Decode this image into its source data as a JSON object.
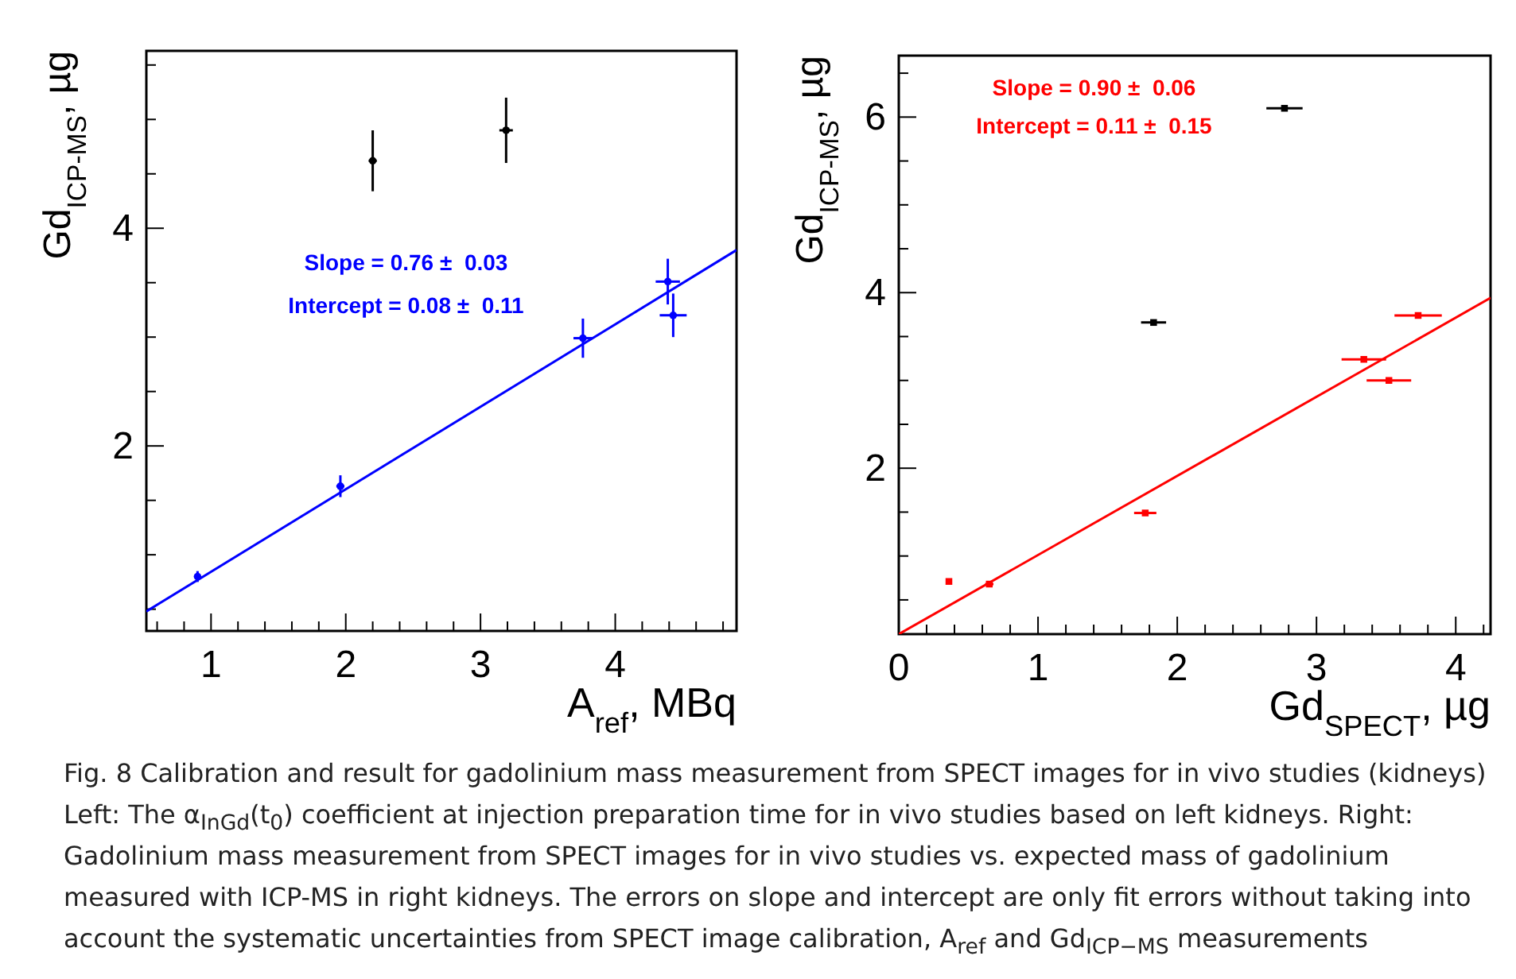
{
  "chart_data": [
    {
      "type": "scatter",
      "xlabel": "A$_{ref}$, MBq",
      "ylabel": "Gd$_{ICP-MS}$, µg",
      "xlim": [
        0.52,
        4.9
      ],
      "ylim": [
        0.3,
        5.63
      ],
      "xticks": [
        {
          "value": 0.6,
          "label": null
        },
        {
          "value": 0.8,
          "label": null
        },
        1,
        {
          "value": 1.2,
          "label": null
        },
        {
          "value": 1.4,
          "label": null
        },
        {
          "value": 1.6,
          "label": null
        },
        {
          "value": 1.8,
          "label": null
        },
        2,
        {
          "value": 2.2,
          "label": null
        },
        {
          "value": 2.4,
          "label": null
        },
        {
          "value": 2.6,
          "label": null
        },
        {
          "value": 2.8,
          "label": null
        },
        3,
        {
          "value": 3.2,
          "label": null
        },
        {
          "value": 3.4,
          "label": null
        },
        {
          "value": 3.6,
          "label": null
        },
        {
          "value": 3.8,
          "label": null
        },
        4,
        {
          "value": 4.2,
          "label": null
        },
        {
          "value": 4.4,
          "label": null
        },
        {
          "value": 4.6,
          "label": null
        },
        {
          "value": 4.8,
          "label": null
        }
      ],
      "yticks": [
        {
          "value": 0.5,
          "label": null
        },
        {
          "value": 1,
          "label": null
        },
        {
          "value": 1.5,
          "label": null
        },
        2,
        {
          "value": 2.5,
          "label": null
        },
        {
          "value": 3,
          "label": null
        },
        {
          "value": 3.5,
          "label": null
        },
        4,
        {
          "value": 4.5,
          "label": null
        },
        {
          "value": 5,
          "label": null
        },
        {
          "value": 5.5,
          "label": null
        }
      ],
      "series": [
        {
          "marker": "circle",
          "color": "#0000ff",
          "x": [
            0.9,
            1.96,
            3.76,
            4.39,
            4.43
          ],
          "values": [
            0.8,
            1.63,
            2.99,
            3.51,
            3.2
          ],
          "errors": [
            0.05,
            0.1,
            0.18,
            0.21,
            0.2
          ],
          "xerrors": [
            0.01,
            0.03,
            0.07,
            0.09,
            0.1
          ]
        },
        {
          "marker": "circle",
          "color": "#000000",
          "x": [
            2.2,
            3.19
          ],
          "values": [
            4.62,
            4.9
          ],
          "errors": [
            0.28,
            0.3
          ],
          "xerrors": [
            0.03,
            0.05
          ]
        },
        {
          "type": "line",
          "color": "#0000ff",
          "x": [
            0.52,
            4.9
          ],
          "values": [
            0.48,
            3.8
          ]
        }
      ],
      "annotations": [
        "Slope = 0.76 ±  0.03",
        "Intercept = 0.08 ±  0.11",
        "Fig. 8  Calibration and result for gadolinium mass measurement from SPECT images for in vivo studies (kidneys) Left: The α$_{InGd}$(t$_{0}$) coefficient at injection preparation time for in vivo studies based on left kidneys. Right: Gadolinium mass measurement from SPECT images for in vivo studies vs. expected mass of gadolinium measured with ICP-MS in right kidneys. The errors on slope and intercept are only fit errors without taking into account the systematic uncertainties from SPECT image calibration, A$_{ref}$ and Gd$_{ICP−MS}$ measurements"
      ]
    },
    {
      "type": "scatter",
      "xlabel": "Gd$_{SPECT}$, µg",
      "ylabel": "Gd$_{ICP-MS}$, µg",
      "xlim": [
        0,
        4.25
      ],
      "ylim": [
        0.11,
        6.7
      ],
      "xticks": [
        0,
        {
          "value": 0.2,
          "label": null
        },
        {
          "value": 0.4,
          "label": null
        },
        {
          "value": 0.6,
          "label": null
        },
        {
          "value": 0.8,
          "label": null
        },
        1,
        {
          "value": 1.2,
          "label": null
        },
        {
          "value": 1.4,
          "label": null
        },
        {
          "value": 1.6,
          "label": null
        },
        {
          "value": 1.8,
          "label": null
        },
        2,
        {
          "value": 2.2,
          "label": null
        },
        {
          "value": 2.4,
          "label": null
        },
        {
          "value": 2.6,
          "label": null
        },
        {
          "value": 2.8,
          "label": null
        },
        3,
        {
          "value": 3.2,
          "label": null
        },
        {
          "value": 3.4,
          "label": null
        },
        {
          "value": 3.6,
          "label": null
        },
        {
          "value": 3.8,
          "label": null
        },
        4,
        {
          "value": 4.2,
          "label": null
        }
      ],
      "yticks": [
        {
          "value": 0.5,
          "label": null
        },
        {
          "value": 1,
          "label": null
        },
        {
          "value": 1.5,
          "label": null
        },
        2,
        {
          "value": 2.5,
          "label": null
        },
        {
          "value": 3,
          "label": null
        },
        {
          "value": 3.5,
          "label": null
        },
        4,
        {
          "value": 4.5,
          "label": null
        },
        {
          "value": 5,
          "label": null
        },
        {
          "value": 5.5,
          "label": null
        },
        6,
        {
          "value": 6.5,
          "label": null
        }
      ],
      "series": [
        {
          "marker": "square",
          "color": "#ff0000",
          "x": [
            0.36,
            0.65,
            1.77,
            3.34,
            3.52,
            3.73
          ],
          "values": [
            0.71,
            0.68,
            1.49,
            3.24,
            3.0,
            3.74
          ],
          "xerrors": [
            0.02,
            0.03,
            0.08,
            0.16,
            0.16,
            0.17
          ]
        },
        {
          "marker": "square",
          "color": "#000000",
          "x": [
            1.83,
            2.77
          ],
          "values": [
            3.66,
            6.1
          ],
          "xerrors": [
            0.09,
            0.13
          ]
        },
        {
          "type": "line",
          "color": "#ff0000",
          "x": [
            0,
            4.25
          ],
          "values": [
            0.11,
            3.94
          ]
        }
      ],
      "annotations": [
        "Slope = 0.90 ±  0.06",
        "Intercept = 0.11 ±  0.15"
      ]
    }
  ]
}
